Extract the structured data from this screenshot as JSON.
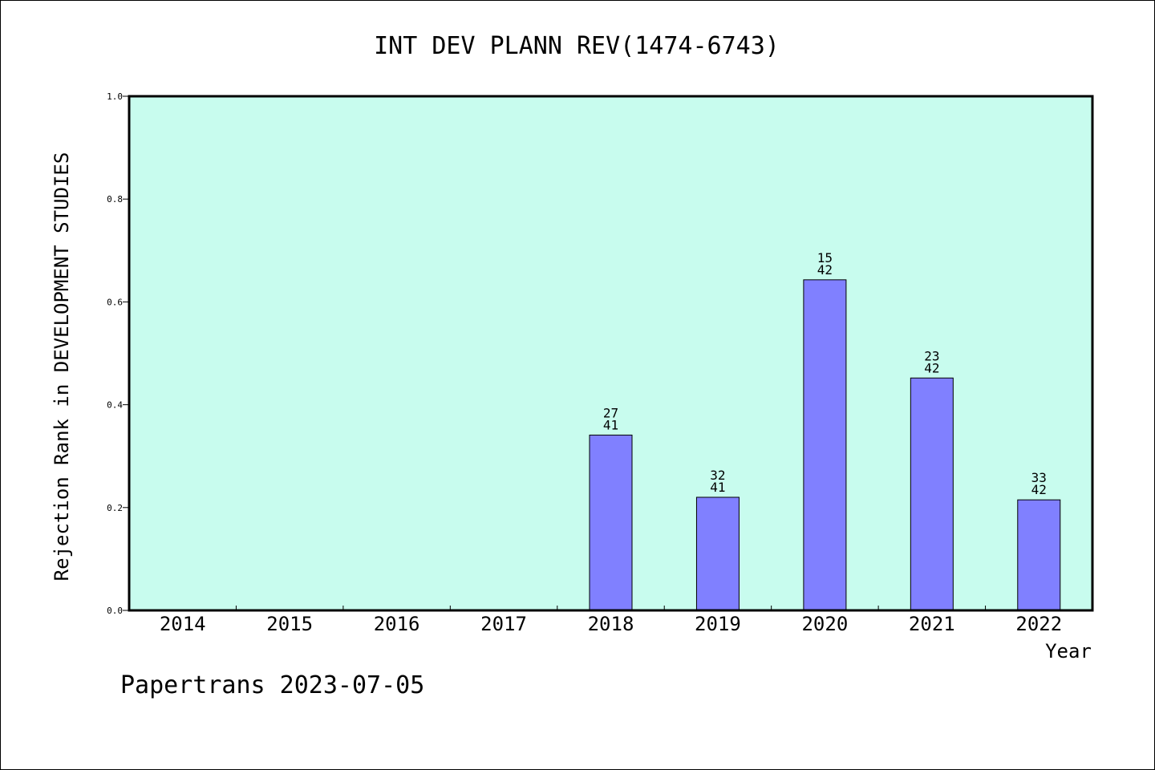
{
  "chart_data": {
    "type": "bar",
    "title": "INT DEV PLANN REV(1474-6743)",
    "xlabel": "Year",
    "ylabel": "Rejection Rank in DEVELOPMENT STUDIES",
    "ylim": [
      0,
      1.0
    ],
    "yticks": [
      "0.0",
      "0.2",
      "0.4",
      "0.6",
      "0.8",
      "1.0"
    ],
    "categories": [
      "2014",
      "2015",
      "2016",
      "2017",
      "2018",
      "2019",
      "2020",
      "2021",
      "2022"
    ],
    "values": [
      null,
      null,
      null,
      null,
      0.341,
      0.22,
      0.643,
      0.452,
      0.215
    ],
    "bar_labels": [
      null,
      null,
      null,
      null,
      {
        "rank": "27",
        "total": "41"
      },
      {
        "rank": "32",
        "total": "41"
      },
      {
        "rank": "15",
        "total": "42"
      },
      {
        "rank": "23",
        "total": "42"
      },
      {
        "rank": "33",
        "total": "42"
      }
    ],
    "colors": {
      "plot_background": "#c8fcee",
      "bar_fill": "#8080ff",
      "bar_stroke": "#000000"
    },
    "grid": false,
    "legend": "none"
  },
  "footer": {
    "text": "Papertrans 2023-07-05"
  }
}
